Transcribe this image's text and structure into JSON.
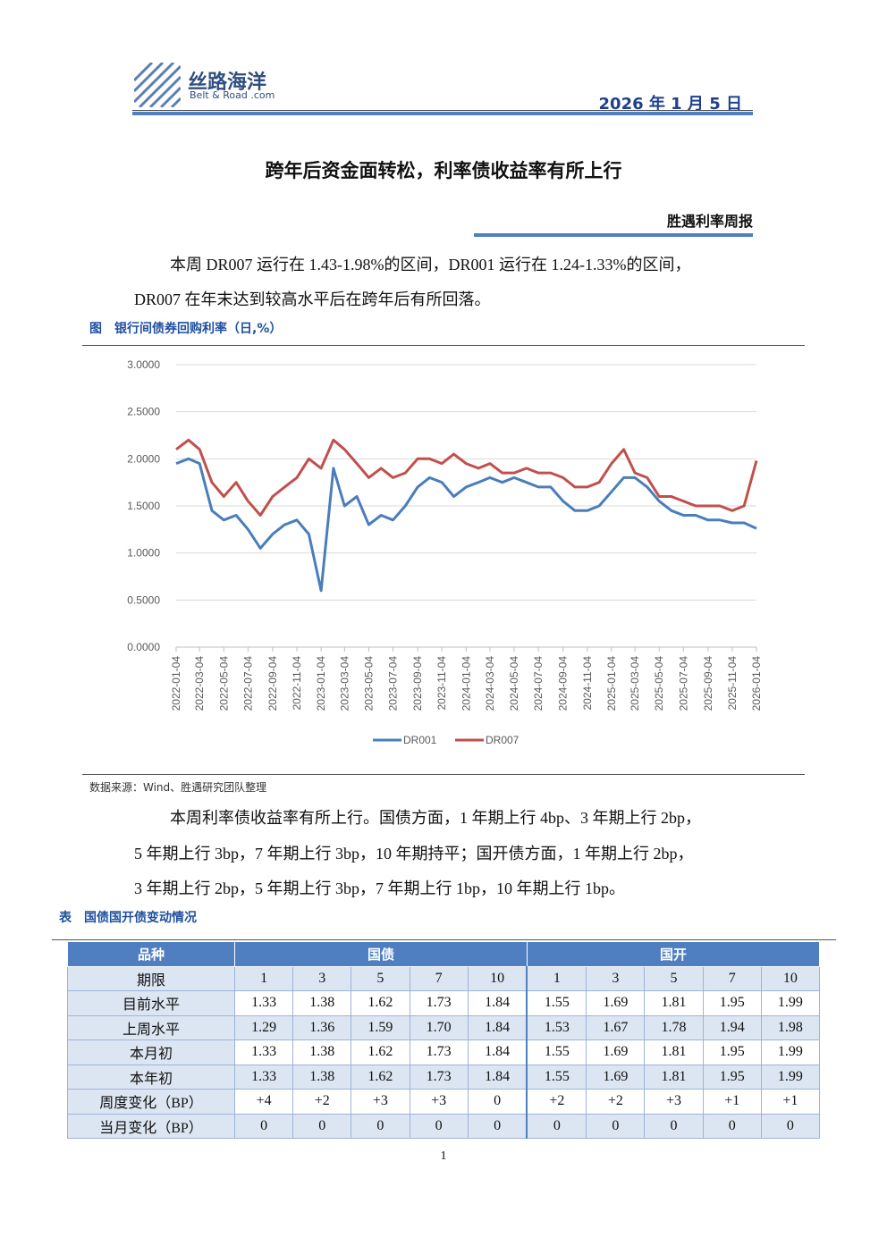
{
  "header": {
    "logo_cn": "丝路海洋",
    "logo_en": "Belt & Road .com",
    "date": "2026 年 1 月 5 日"
  },
  "title": "跨年后资金面转松，利率债收益率有所上行",
  "section": "胜遇利率周报",
  "paragraphs": [
    "本周 DR007 运行在 1.43-1.98%的区间，DR001 运行在 1.24-1.33%的区间，",
    "DR007 在年末达到较高水平后在跨年后有所回落。"
  ],
  "figure_caption": "图　银行间债券回购利率（日,%）",
  "chart_data": {
    "type": "line",
    "x": [
      "2022-01-04",
      "2022-02-04",
      "2022-03-04",
      "2022-04-04",
      "2022-05-04",
      "2022-06-04",
      "2022-07-04",
      "2022-08-04",
      "2022-09-04",
      "2022-10-04",
      "2022-11-04",
      "2022-12-04",
      "2023-01-04",
      "2023-02-04",
      "2023-03-04",
      "2023-04-04",
      "2023-05-04",
      "2023-06-04",
      "2023-07-04",
      "2023-08-04",
      "2023-09-04",
      "2023-10-04",
      "2023-11-04",
      "2023-12-04",
      "2024-01-04",
      "2024-02-04",
      "2024-03-04",
      "2024-04-04",
      "2024-05-04",
      "2024-06-04",
      "2024-07-04",
      "2024-08-04",
      "2024-09-04",
      "2024-10-04",
      "2024-11-04",
      "2024-12-04",
      "2025-01-04",
      "2025-02-04",
      "2025-03-04",
      "2025-04-04",
      "2025-05-04",
      "2025-06-04",
      "2025-07-04",
      "2025-08-04",
      "2025-09-04",
      "2025-10-04",
      "2025-11-04",
      "2025-12-04",
      "2026-01-04"
    ],
    "series": [
      {
        "name": "DR001",
        "color": "#4a7ebb",
        "values": [
          1.95,
          2.0,
          1.95,
          1.45,
          1.35,
          1.4,
          1.25,
          1.05,
          1.2,
          1.3,
          1.35,
          1.2,
          0.6,
          1.9,
          1.5,
          1.6,
          1.3,
          1.4,
          1.35,
          1.5,
          1.7,
          1.8,
          1.75,
          1.6,
          1.7,
          1.75,
          1.8,
          1.75,
          1.8,
          1.75,
          1.7,
          1.7,
          1.55,
          1.45,
          1.45,
          1.5,
          1.65,
          1.8,
          1.8,
          1.7,
          1.55,
          1.45,
          1.4,
          1.4,
          1.35,
          1.35,
          1.32,
          1.32,
          1.26
        ]
      },
      {
        "name": "DR007",
        "color": "#c0504d",
        "values": [
          2.1,
          2.2,
          2.1,
          1.75,
          1.6,
          1.75,
          1.55,
          1.4,
          1.6,
          1.7,
          1.8,
          2.0,
          1.9,
          2.2,
          2.1,
          1.95,
          1.8,
          1.9,
          1.8,
          1.85,
          2.0,
          2.0,
          1.95,
          2.05,
          1.95,
          1.9,
          1.95,
          1.85,
          1.85,
          1.9,
          1.85,
          1.85,
          1.8,
          1.7,
          1.7,
          1.75,
          1.95,
          2.1,
          1.85,
          1.8,
          1.6,
          1.6,
          1.55,
          1.5,
          1.5,
          1.5,
          1.45,
          1.5,
          1.98
        ]
      }
    ],
    "ylim": [
      0,
      3
    ],
    "yticks": [
      {
        "value": 0,
        "label": "0.0000"
      },
      {
        "value": 0.5,
        "label": "0.5000"
      },
      {
        "value": 1,
        "label": "1.0000"
      },
      {
        "value": 1.5,
        "label": "1.5000"
      },
      {
        "value": 2,
        "label": "2.0000"
      },
      {
        "value": 2.5,
        "label": "2.5000"
      },
      {
        "value": 3,
        "label": "3.0000"
      }
    ],
    "xticks": [
      "2022-01-04",
      "2022-03-04",
      "2022-05-04",
      "2022-07-04",
      "2022-09-04",
      "2022-11-04",
      "2023-01-04",
      "2023-03-04",
      "2023-05-04",
      "2023-07-04",
      "2023-09-04",
      "2023-11-04",
      "2024-01-04",
      "2024-03-04",
      "2024-05-04",
      "2024-07-04",
      "2024-09-04",
      "2024-11-04",
      "2025-01-04",
      "2025-03-04",
      "2025-05-04",
      "2025-07-04",
      "2025-09-04",
      "2025-11-04",
      "2026-01-04"
    ],
    "grid": true,
    "legend": "bottom"
  },
  "source": "数据来源：Wind、胜遇研究团队整理",
  "paragraphs2": [
    "本周利率债收益率有所上行。国债方面，1 年期上行 4bp、3 年期上行 2bp，",
    "5 年期上行 3bp，7 年期上行 3bp，10 年期持平；国开债方面，1 年期上行 2bp，",
    "3 年期上行 2bp，5 年期上行 3bp，7 年期上行 1bp，10 年期上行 1bp。"
  ],
  "table_caption": "表　国债国开债变动情况",
  "table": {
    "header": [
      "品种",
      "国债",
      "国开"
    ],
    "rows": [
      [
        "期限",
        "1",
        "3",
        "5",
        "7",
        "10",
        "1",
        "3",
        "5",
        "7",
        "10"
      ],
      [
        "目前水平",
        "1.33",
        "1.38",
        "1.62",
        "1.73",
        "1.84",
        "1.55",
        "1.69",
        "1.81",
        "1.95",
        "1.99"
      ],
      [
        "上周水平",
        "1.29",
        "1.36",
        "1.59",
        "1.70",
        "1.84",
        "1.53",
        "1.67",
        "1.78",
        "1.94",
        "1.98"
      ],
      [
        "本月初",
        "1.33",
        "1.38",
        "1.62",
        "1.73",
        "1.84",
        "1.55",
        "1.69",
        "1.81",
        "1.95",
        "1.99"
      ],
      [
        "本年初",
        "1.33",
        "1.38",
        "1.62",
        "1.73",
        "1.84",
        "1.55",
        "1.69",
        "1.81",
        "1.95",
        "1.99"
      ],
      [
        "周度变化（BP）",
        "+4",
        "+2",
        "+3",
        "+3",
        "0",
        "+2",
        "+2",
        "+3",
        "+1",
        "+1"
      ],
      [
        "当月变化（BP）",
        "0",
        "0",
        "0",
        "0",
        "0",
        "0",
        "0",
        "0",
        "0",
        "0"
      ]
    ]
  },
  "page_number": "1"
}
